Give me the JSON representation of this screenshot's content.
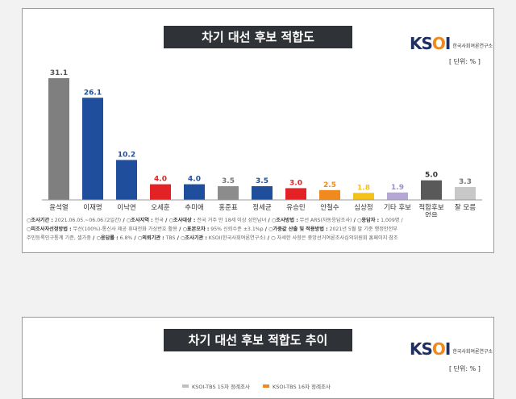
{
  "panel1": {
    "title": "차기 대선 후보 적합도",
    "logo": {
      "mark_1": "KS",
      "mark_2": "O",
      "mark_3": "I",
      "subtitle": "한국사회여론연구소"
    },
    "unit": "[ 단위: % ]",
    "notes": {
      "line1": [
        {
          "k": "○조사기간 :",
          "v": "2021.06.05.~06.06.(2일간)"
        },
        {
          "k": " / ○조사지역 :",
          "v": "전국"
        },
        {
          "k": " / ○조사대상 :",
          "v": "전국 거주 만 18세 이상 성인남녀"
        },
        {
          "k": " / ○조사방법 :",
          "v": "무선 ARS(자동응답조사)"
        },
        {
          "k": " / ○응답자 :",
          "v": "1,009명 /"
        }
      ],
      "line2": [
        {
          "k": "○피조사자선정방법 :",
          "v": "무선(100%)-통신사 제공 휴대전화 가상번호 활용"
        },
        {
          "k": " / ○표본오차 :",
          "v": "95% 신뢰수준 ±3.1%p"
        },
        {
          "k": " / ○가중값 산출 및 적용방법 :",
          "v": "2021년 5월 말 기준 행정안전부"
        }
      ],
      "line3": [
        {
          "k": "",
          "v": "주민등록인구통계 기준, 셀가중"
        },
        {
          "k": " / ○응답률 :",
          "v": "6.8%"
        },
        {
          "k": " / ○의뢰기관 :",
          "v": "TBS"
        },
        {
          "k": " / ○조사기관 :",
          "v": "KSOI(한국사회여론연구소)"
        },
        {
          "k": " / ○",
          "v": "자세한 사항은 중앙선거여론조사심의위원회 홈페이지 참조"
        }
      ]
    }
  },
  "panel2": {
    "title": "차기 대선 후보 적합도 추이",
    "logo": {
      "mark_1": "KS",
      "mark_2": "O",
      "mark_3": "I",
      "subtitle": "한국사회여론연구소"
    },
    "unit": "[ 단위: % ]",
    "legend": [
      "KSOI-TBS 15차 정례조사",
      "KSOI-TBS 16차 정례조사"
    ],
    "legend_colors": [
      "#bfbfbf",
      "#f08a1c"
    ]
  },
  "chart_data": {
    "type": "bar",
    "title": "차기 대선 후보 적합도",
    "categories": [
      "윤석열",
      "이재명",
      "이낙연",
      "오세훈",
      "추미애",
      "홍준표",
      "정세균",
      "유승민",
      "안철수",
      "심상정",
      "기타 후보",
      "적합후보 없음",
      "잘 모름"
    ],
    "values": [
      31.1,
      26.1,
      10.2,
      4.0,
      4.0,
      3.5,
      3.5,
      3.0,
      2.5,
      1.8,
      1.9,
      5.0,
      3.3
    ],
    "value_labels": [
      "31.1",
      "26.1",
      "10.2",
      "4.0",
      "4.0",
      "3.5",
      "3.5",
      "3.0",
      "2.5",
      "1.8",
      "1.9",
      "5.0",
      "3.3"
    ],
    "colors": [
      "#7f7f7f",
      "#1f4e9c",
      "#1f4e9c",
      "#e32226",
      "#1f4e9c",
      "#8c8c8c",
      "#1f4e9c",
      "#e32226",
      "#f08a1c",
      "#f2c21a",
      "#b4a7d6",
      "#595959",
      "#c8c8c8"
    ],
    "label_colors": [
      "#555555",
      "#1f4e9c",
      "#1f4e9c",
      "#e32226",
      "#1f4e9c",
      "#777777",
      "#1f4e9c",
      "#e32226",
      "#f08a1c",
      "#f2c21a",
      "#9d8fc4",
      "#333333",
      "#777777"
    ],
    "ylim": [
      0,
      35
    ],
    "grid": false
  }
}
